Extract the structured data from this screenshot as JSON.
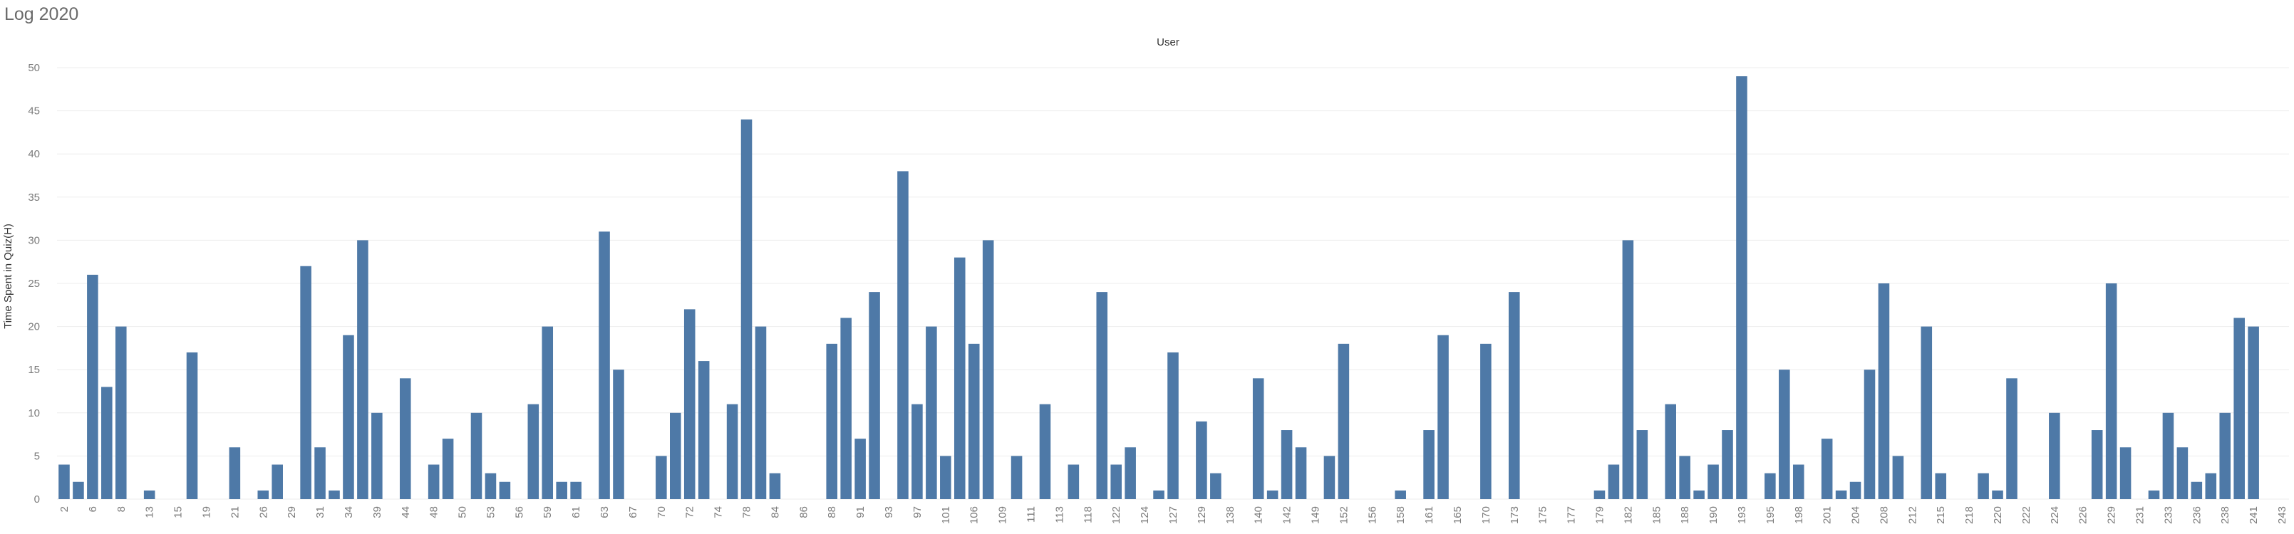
{
  "page": {
    "title": "Log 2020"
  },
  "chart_data": {
    "type": "bar",
    "title": "",
    "xlabel": "User",
    "ylabel": "Time Spent in Quiz(H)",
    "ylim": [
      0,
      50
    ],
    "y_ticks": [
      0,
      5,
      10,
      15,
      20,
      25,
      30,
      35,
      40,
      45,
      50
    ],
    "grid": true,
    "color": "#4e79a7",
    "categories": [
      "2",
      "4",
      "6",
      "7",
      "8",
      "10",
      "13",
      "14",
      "15",
      "17",
      "19",
      "20",
      "21",
      "25",
      "26",
      "27",
      "29",
      "30",
      "31",
      "33",
      "34",
      "35",
      "39",
      "42",
      "44",
      "47",
      "48",
      "49",
      "50",
      "52",
      "53",
      "55",
      "56",
      "58",
      "59",
      "60",
      "61",
      "62",
      "63",
      "64",
      "67",
      "69",
      "70",
      "71",
      "72",
      "73",
      "74",
      "77",
      "78",
      "79",
      "84",
      "85",
      "86",
      "87",
      "88",
      "90",
      "91",
      "92",
      "93",
      "94",
      "97",
      "100",
      "101",
      "103",
      "106",
      "107",
      "109",
      "110",
      "111",
      "112",
      "113",
      "117",
      "118",
      "121",
      "122",
      "123",
      "124",
      "126",
      "127",
      "128",
      "129",
      "130",
      "138",
      "139",
      "140",
      "141",
      "142",
      "147",
      "149",
      "150",
      "152",
      "153",
      "156",
      "157",
      "158",
      "160",
      "161",
      "164",
      "165",
      "169",
      "170",
      "171",
      "173",
      "174",
      "175",
      "176",
      "177",
      "178",
      "179",
      "180",
      "182",
      "183",
      "185",
      "186",
      "188",
      "189",
      "190",
      "191",
      "193",
      "194",
      "195",
      "196",
      "198",
      "200",
      "201",
      "203",
      "204",
      "205",
      "208",
      "211",
      "212",
      "214",
      "215",
      "216",
      "218",
      "219",
      "220",
      "221",
      "222",
      "223",
      "224",
      "225",
      "226",
      "228",
      "229",
      "230",
      "231",
      "232",
      "233",
      "235",
      "236",
      "237",
      "238",
      "239",
      "241",
      "242",
      "243"
    ],
    "values": [
      4,
      2,
      26,
      13,
      20,
      0,
      1,
      0,
      0,
      17,
      0,
      0,
      6,
      0,
      1,
      4,
      0,
      27,
      6,
      1,
      19,
      30,
      10,
      0,
      14,
      0,
      4,
      7,
      0,
      10,
      3,
      2,
      0,
      11,
      20,
      2,
      2,
      0,
      31,
      15,
      0,
      0,
      5,
      10,
      22,
      16,
      0,
      11,
      44,
      20,
      3,
      0,
      0,
      0,
      18,
      21,
      7,
      24,
      0,
      38,
      11,
      20,
      5,
      28,
      18,
      30,
      0,
      5,
      0,
      11,
      0,
      4,
      0,
      24,
      4,
      6,
      0,
      1,
      17,
      0,
      9,
      3,
      0,
      0,
      14,
      1,
      8,
      6,
      0,
      5,
      18,
      0,
      0,
      0,
      1,
      0,
      8,
      19,
      0,
      0,
      18,
      0,
      24,
      0,
      0,
      0,
      0,
      0,
      1,
      4,
      30,
      8,
      0,
      11,
      5,
      1,
      4,
      8,
      49,
      0,
      3,
      15,
      4,
      0,
      7,
      1,
      2,
      15,
      25,
      5,
      0,
      20,
      3,
      0,
      0,
      3,
      1,
      14,
      0,
      0,
      10,
      0,
      0,
      8,
      25,
      6,
      0,
      1,
      10,
      6,
      2,
      3,
      10,
      21,
      20,
      0,
      0
    ],
    "x_tick_labels": [
      "2",
      "6",
      "8",
      "13",
      "15",
      "19",
      "21",
      "26",
      "29",
      "31",
      "34",
      "39",
      "44",
      "48",
      "50",
      "53",
      "56",
      "59",
      "61",
      "63",
      "67",
      "70",
      "72",
      "74",
      "78",
      "84",
      "86",
      "88",
      "91",
      "93",
      "97",
      "101",
      "106",
      "109",
      "111",
      "113",
      "118",
      "122",
      "124",
      "127",
      "129",
      "138",
      "140",
      "142",
      "149",
      "152",
      "156",
      "158",
      "161",
      "165",
      "170",
      "173",
      "175",
      "177",
      "179",
      "182",
      "185",
      "188",
      "190",
      "193",
      "195",
      "198",
      "201",
      "204",
      "208",
      "212",
      "215",
      "218",
      "220",
      "222",
      "224",
      "226",
      "229",
      "231",
      "233",
      "236",
      "238",
      "241",
      "243"
    ]
  }
}
